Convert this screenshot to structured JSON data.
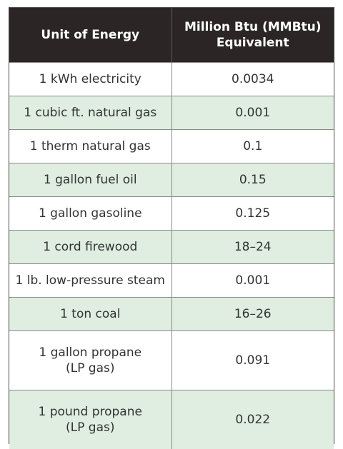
{
  "headers": {
    "unit": "Unit of Energy",
    "mmbtu_line1": "Million Btu (MMBtu)",
    "mmbtu_line2": "Equivalent"
  },
  "rows": [
    {
      "unit": [
        "1 kWh electricity"
      ],
      "value": "0.0034"
    },
    {
      "unit": [
        "1 cubic ft. natural gas"
      ],
      "value": "0.001"
    },
    {
      "unit": [
        "1 therm natural gas"
      ],
      "value": "0.1"
    },
    {
      "unit": [
        "1 gallon fuel oil"
      ],
      "value": "0.15"
    },
    {
      "unit": [
        "1 gallon gasoline"
      ],
      "value": "0.125"
    },
    {
      "unit": [
        "1 cord firewood"
      ],
      "value": "18–24"
    },
    {
      "unit": [
        "1 lb. low-pressure steam"
      ],
      "value": "0.001"
    },
    {
      "unit": [
        "1 ton coal"
      ],
      "value": "16–26"
    },
    {
      "unit": [
        "1 gallon propane",
        "(LP gas)"
      ],
      "value": "0.091"
    },
    {
      "unit": [
        "1 pound propane",
        "(LP gas)"
      ],
      "value": "0.022"
    }
  ],
  "colors": {
    "header_bg": "#2b2625",
    "stripe": "#dfeee0"
  }
}
